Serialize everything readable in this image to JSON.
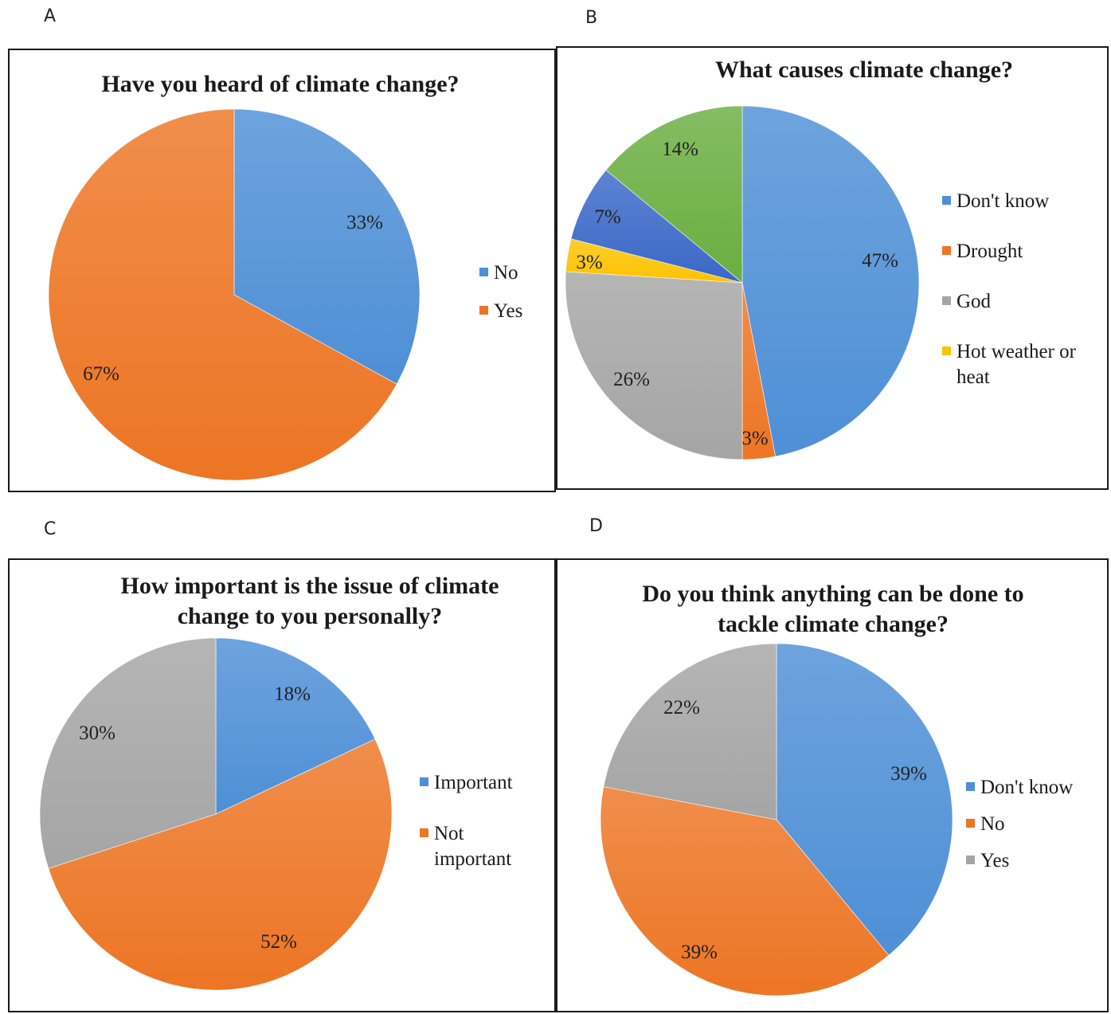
{
  "panels": [
    {
      "letter": "A"
    },
    {
      "letter": "B"
    },
    {
      "letter": "C"
    },
    {
      "letter": "D"
    }
  ],
  "chart_data": [
    {
      "type": "pie",
      "title": [
        "Have you heard of climate change?"
      ],
      "slices": [
        {
          "label": "No",
          "value": 33,
          "display": "33%",
          "color": "#4e8fd6"
        },
        {
          "label": "Yes",
          "value": 67,
          "display": "67%",
          "color": "#ed7524"
        }
      ],
      "legend": [
        {
          "label": [
            "No"
          ],
          "color": "#4e8fd6"
        },
        {
          "label": [
            "Yes"
          ],
          "color": "#ed7524"
        }
      ]
    },
    {
      "type": "pie",
      "title": [
        "What causes climate change?"
      ],
      "slices": [
        {
          "label": "Don't know",
          "value": 47,
          "display": "47%",
          "color": "#4e8fd6"
        },
        {
          "label": "Drought",
          "value": 3,
          "display": "3%",
          "color": "#ed7524"
        },
        {
          "label": "God",
          "value": 26,
          "display": "26%",
          "color": "#a5a5a5"
        },
        {
          "label": "Hot weather or heat",
          "value": 3,
          "display": "3%",
          "color": "#fdc200"
        },
        {
          "label": "",
          "value": 7,
          "display": "7%",
          "color": "#3a68c8"
        },
        {
          "label": "",
          "value": 14,
          "display": "14%",
          "color": "#6aae40"
        }
      ],
      "legend": [
        {
          "label": [
            "Don't know"
          ],
          "color": "#4e8fd6"
        },
        {
          "label": [
            "Drought"
          ],
          "color": "#ed7524"
        },
        {
          "label": [
            "God"
          ],
          "color": "#a5a5a5"
        },
        {
          "label": [
            "Hot weather or",
            "heat"
          ],
          "color": "#fdc200"
        }
      ]
    },
    {
      "type": "pie",
      "title": [
        "How important is the issue of climate",
        "change to you personally?"
      ],
      "slices": [
        {
          "label": "Important",
          "value": 18,
          "display": "18%",
          "color": "#4e8fd6"
        },
        {
          "label": "Not important",
          "value": 52,
          "display": "52%",
          "color": "#ed7524"
        },
        {
          "label": "",
          "value": 30,
          "display": "30%",
          "color": "#a5a5a5"
        }
      ],
      "legend": [
        {
          "label": [
            "Important"
          ],
          "color": "#4e8fd6"
        },
        {
          "label": [
            "Not",
            "important"
          ],
          "color": "#ed7524"
        }
      ]
    },
    {
      "type": "pie",
      "title": [
        "Do you think anything can be done to",
        "tackle climate change?"
      ],
      "slices": [
        {
          "label": "Don't know",
          "value": 39,
          "display": "39%",
          "color": "#4e8fd6"
        },
        {
          "label": "No",
          "value": 39,
          "display": "39%",
          "color": "#ed7524"
        },
        {
          "label": "Yes",
          "value": 22,
          "display": "22%",
          "color": "#a5a5a5"
        }
      ],
      "legend": [
        {
          "label": [
            "Don't know"
          ],
          "color": "#4e8fd6"
        },
        {
          "label": [
            "No"
          ],
          "color": "#ed7524"
        },
        {
          "label": [
            "Yes"
          ],
          "color": "#a5a5a5"
        }
      ]
    }
  ]
}
